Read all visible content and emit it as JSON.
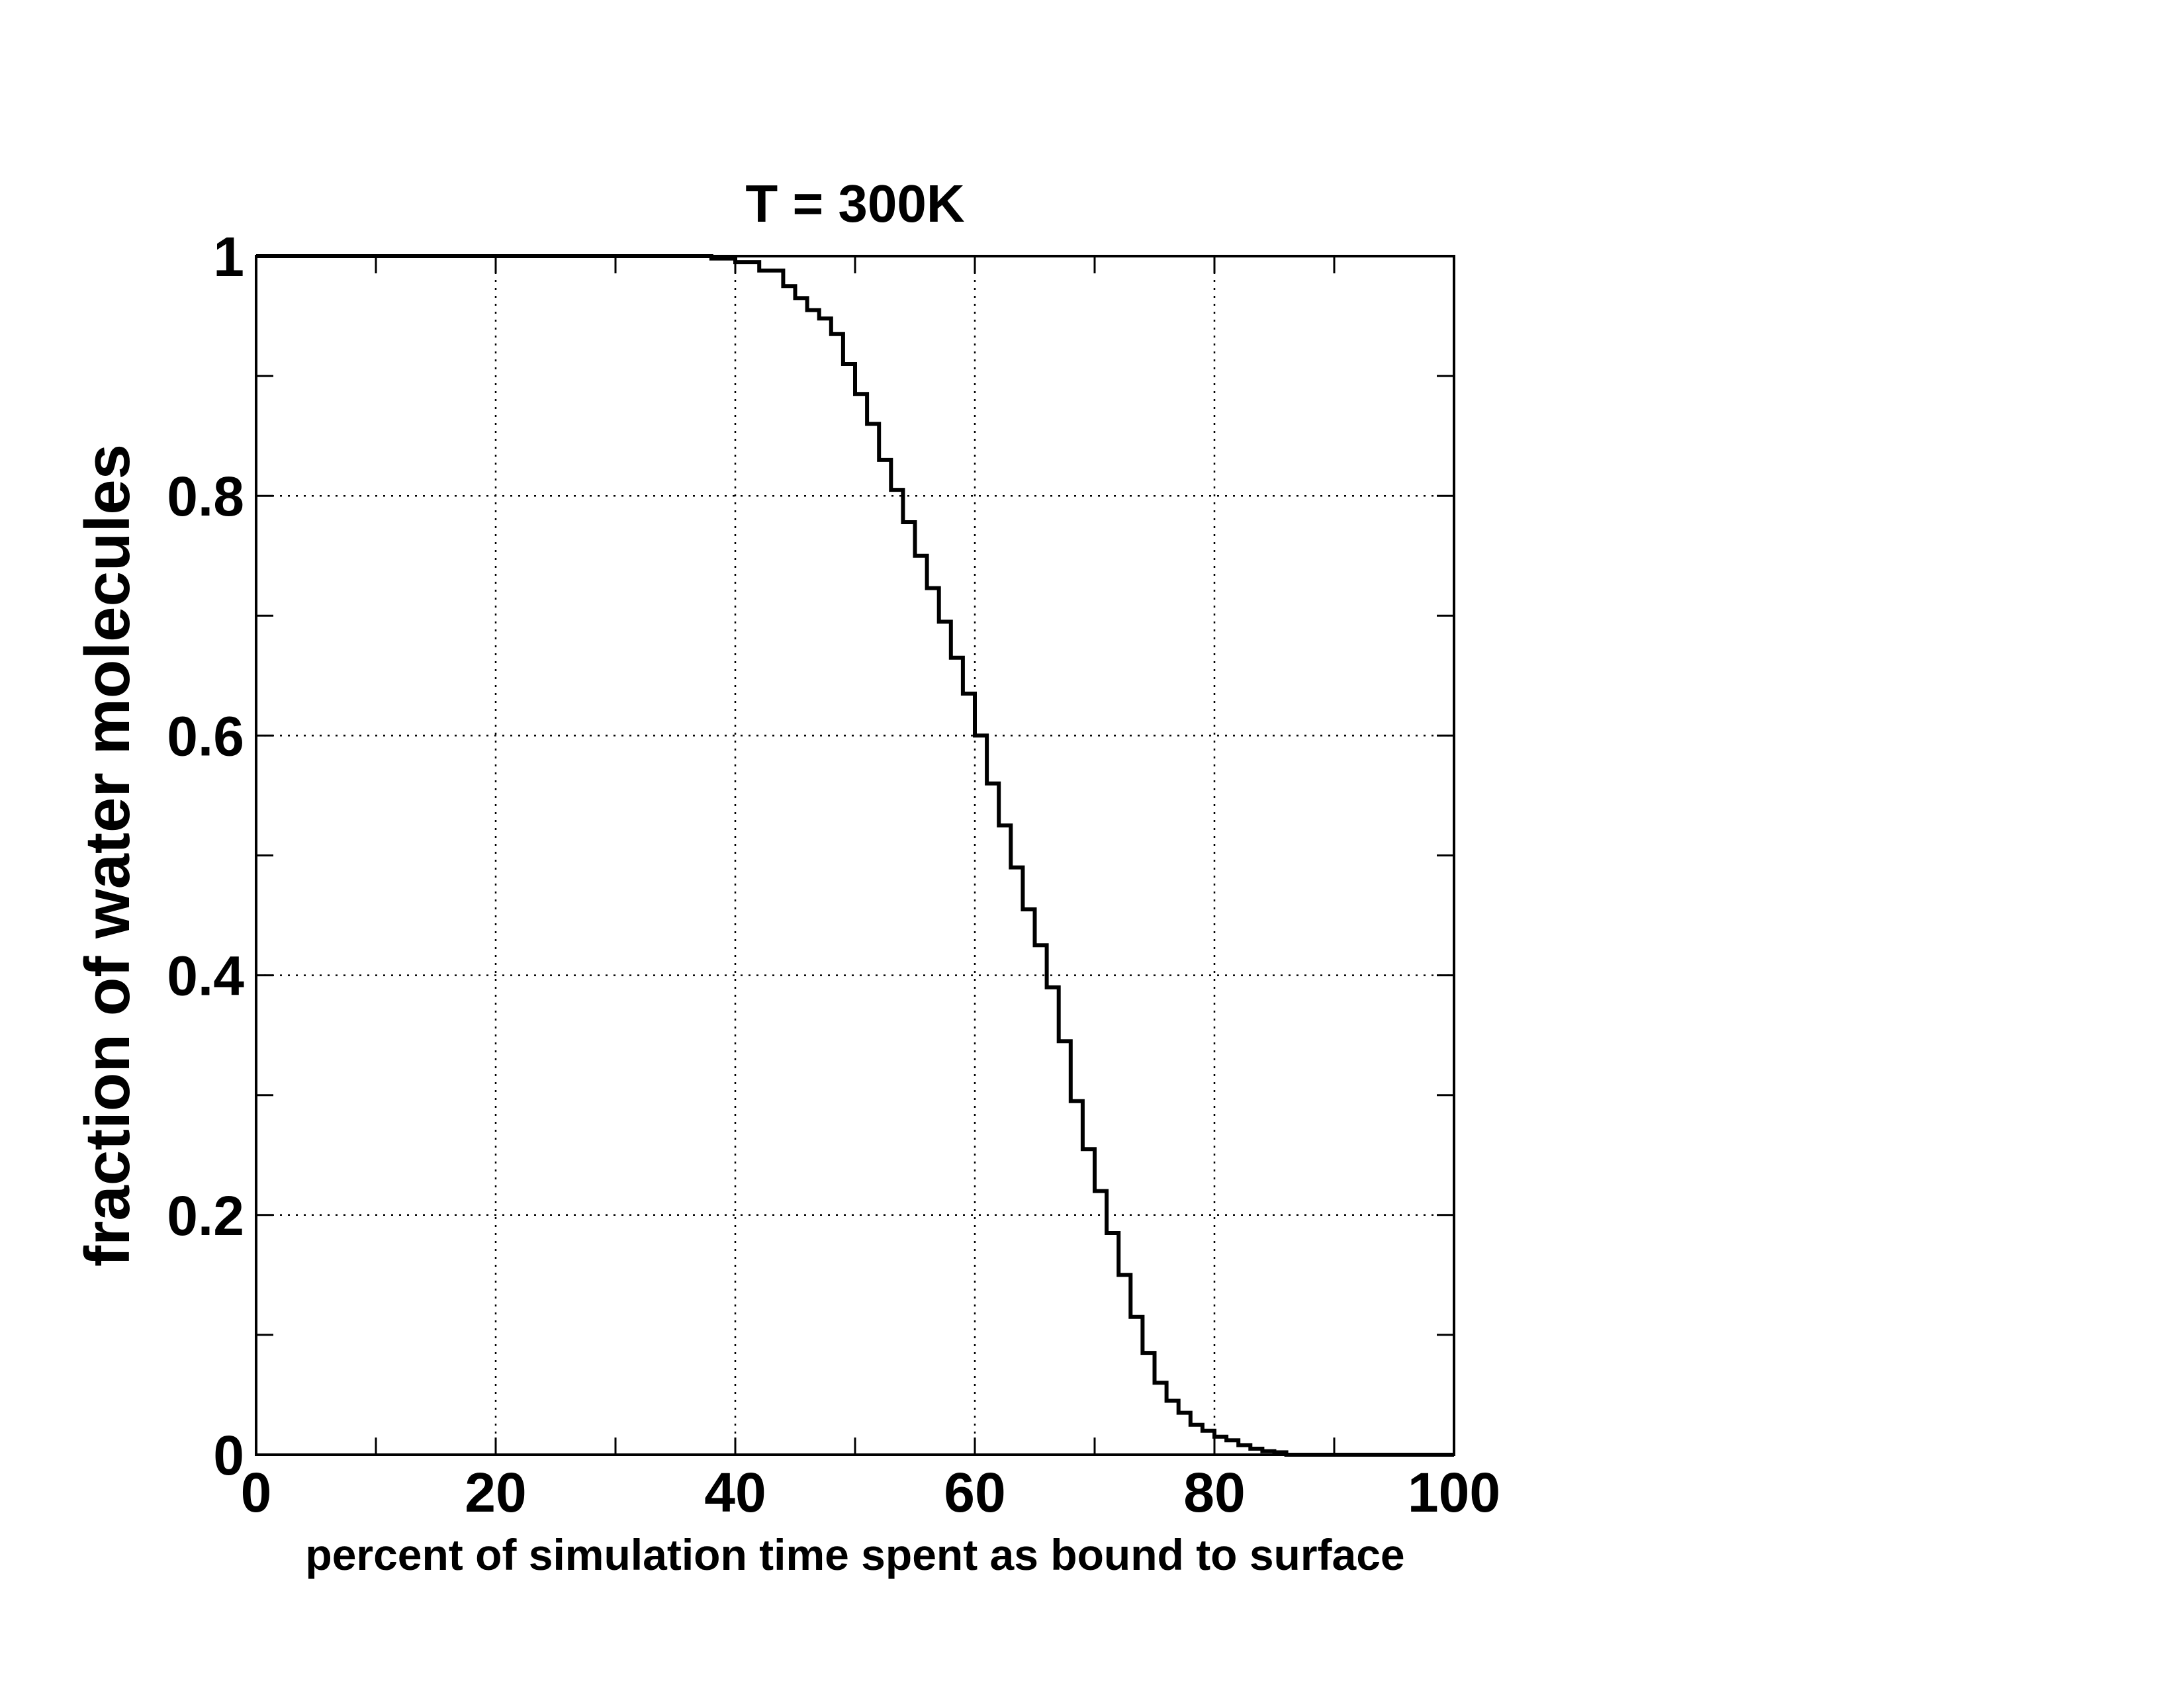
{
  "chart_data": {
    "type": "line",
    "title": "T = 300K",
    "xlabel": "percent of simulation time spent as bound to surface",
    "ylabel": "fraction of water molecules",
    "xlim": [
      0,
      100
    ],
    "ylim": [
      0,
      1
    ],
    "x_ticks": [
      0,
      20,
      40,
      60,
      80,
      100
    ],
    "x_tick_labels": [
      "0",
      "20",
      "40",
      "60",
      "80",
      "100"
    ],
    "x_minor_ticks": [
      10,
      30,
      50,
      70,
      90
    ],
    "y_ticks": [
      0,
      0.2,
      0.4,
      0.6,
      0.8,
      1
    ],
    "y_tick_labels": [
      "0",
      "0.2",
      "0.4",
      "0.6",
      "0.8",
      "1"
    ],
    "y_minor_ticks": [
      0.1,
      0.3,
      0.5,
      0.7,
      0.9
    ],
    "grid": true,
    "grid_style": "dotted",
    "legend": "none",
    "line_color": "#000000",
    "series": [
      {
        "step": "post",
        "x": [
          0,
          38,
          40,
          42,
          44,
          45,
          46,
          47,
          48,
          49,
          50,
          51,
          52,
          53,
          54,
          55,
          56,
          57,
          58,
          59,
          60,
          61,
          62,
          63,
          64,
          65,
          66,
          67,
          68,
          69,
          70,
          71,
          72,
          73,
          74,
          75,
          76,
          77,
          78,
          79,
          80,
          81,
          82,
          83,
          84,
          85,
          86,
          100
        ],
        "y": [
          1,
          0.998,
          0.995,
          0.988,
          0.975,
          0.965,
          0.955,
          0.948,
          0.935,
          0.91,
          0.885,
          0.86,
          0.83,
          0.805,
          0.778,
          0.75,
          0.723,
          0.695,
          0.665,
          0.635,
          0.6,
          0.56,
          0.525,
          0.49,
          0.455,
          0.425,
          0.39,
          0.345,
          0.295,
          0.255,
          0.22,
          0.185,
          0.15,
          0.115,
          0.085,
          0.06,
          0.045,
          0.035,
          0.025,
          0.02,
          0.015,
          0.012,
          0.008,
          0.005,
          0.003,
          0.002,
          0,
          0
        ]
      }
    ]
  }
}
